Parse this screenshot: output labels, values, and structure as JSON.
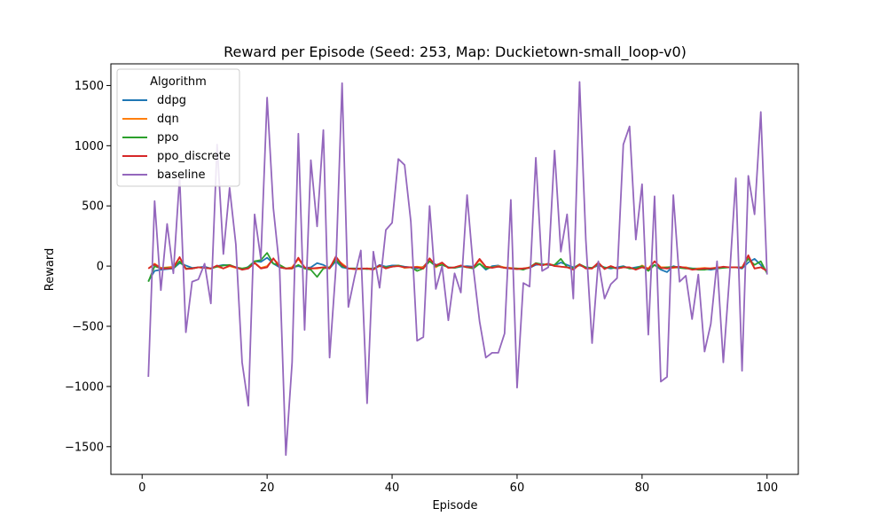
{
  "chart_data": {
    "type": "line",
    "title": "Reward per Episode (Seed: 253, Map: Duckietown-small_loop-v0)",
    "xlabel": "Episode",
    "ylabel": "Reward",
    "xlim": [
      -5,
      105
    ],
    "ylim": [
      -1730,
      1680
    ],
    "xticks": [
      0,
      20,
      40,
      60,
      80,
      100
    ],
    "yticks": [
      -1500,
      -1000,
      -500,
      0,
      500,
      1000,
      1500
    ],
    "xtick_labels": [
      "0",
      "20",
      "40",
      "60",
      "80",
      "100"
    ],
    "ytick_labels": [
      "−1500",
      "−1000",
      "−500",
      "0",
      "500",
      "1000",
      "1500"
    ],
    "grid": false,
    "legend": {
      "title": "Algorithm",
      "placement": "top-left"
    },
    "x": [
      1,
      2,
      3,
      4,
      5,
      6,
      7,
      8,
      9,
      10,
      11,
      12,
      13,
      14,
      15,
      16,
      17,
      18,
      19,
      20,
      21,
      22,
      23,
      24,
      25,
      26,
      27,
      28,
      29,
      30,
      31,
      32,
      33,
      34,
      35,
      36,
      37,
      38,
      39,
      40,
      41,
      42,
      43,
      44,
      45,
      46,
      47,
      48,
      49,
      50,
      51,
      52,
      53,
      54,
      55,
      56,
      57,
      58,
      59,
      60,
      61,
      62,
      63,
      64,
      65,
      66,
      67,
      68,
      69,
      70,
      71,
      72,
      73,
      74,
      75,
      76,
      77,
      78,
      79,
      80,
      81,
      82,
      83,
      84,
      85,
      86,
      87,
      88,
      89,
      90,
      91,
      92,
      93,
      94,
      95,
      96,
      97,
      98,
      99,
      100
    ],
    "series": [
      {
        "name": "ddpg",
        "color": "#1f77b4",
        "values": [
          -125,
          -40,
          -30,
          -25,
          -20,
          25,
          5,
          -15,
          -10,
          -5,
          -20,
          0,
          10,
          5,
          -10,
          -30,
          -5,
          40,
          35,
          70,
          20,
          -10,
          -20,
          -10,
          0,
          -15,
          -10,
          25,
          10,
          -20,
          40,
          -10,
          -20,
          -20,
          -25,
          -20,
          -25,
          10,
          -5,
          5,
          5,
          -5,
          -10,
          -20,
          -5,
          50,
          10,
          20,
          -10,
          -15,
          -5,
          0,
          -5,
          20,
          -30,
          0,
          5,
          -15,
          -20,
          -25,
          -20,
          -15,
          10,
          15,
          10,
          5,
          30,
          10,
          -10,
          5,
          -10,
          -15,
          5,
          -10,
          -20,
          -10,
          0,
          -20,
          -10,
          0,
          -20,
          10,
          -30,
          -50,
          0,
          -15,
          -10,
          -20,
          -20,
          -25,
          -30,
          -20,
          -10,
          -10,
          -10,
          -20,
          30,
          60,
          10,
          -50
        ]
      },
      {
        "name": "dqn",
        "color": "#ff7f0e",
        "values": [
          -20,
          20,
          -15,
          -10,
          -5,
          70,
          -20,
          -20,
          -10,
          -15,
          -20,
          -5,
          -20,
          0,
          -15,
          -25,
          -10,
          30,
          -15,
          0,
          60,
          10,
          -20,
          -10,
          60,
          -15,
          -20,
          -20,
          -10,
          -10,
          60,
          20,
          -20,
          -25,
          -25,
          -20,
          -20,
          0,
          -10,
          -5,
          5,
          -15,
          -10,
          -5,
          -10,
          55,
          -10,
          25,
          -15,
          -10,
          5,
          -10,
          -10,
          50,
          -5,
          -10,
          0,
          -10,
          -15,
          -20,
          -20,
          -10,
          25,
          10,
          20,
          5,
          -5,
          -10,
          -20,
          10,
          -15,
          -20,
          20,
          -20,
          0,
          -20,
          -10,
          -15,
          -25,
          5,
          -20,
          40,
          -10,
          -10,
          -15,
          -10,
          -10,
          -25,
          -20,
          -15,
          -20,
          -10,
          -10,
          -10,
          -10,
          -10,
          75,
          -20,
          -10,
          -40
        ]
      },
      {
        "name": "ppo",
        "color": "#2ca02c",
        "values": [
          -130,
          0,
          -20,
          -15,
          -20,
          40,
          -20,
          -20,
          -10,
          -15,
          -20,
          -5,
          5,
          10,
          -10,
          -20,
          -10,
          40,
          50,
          110,
          20,
          10,
          -20,
          -20,
          10,
          -20,
          -30,
          -90,
          -20,
          -10,
          50,
          0,
          -20,
          -20,
          -20,
          -25,
          -20,
          0,
          -10,
          -5,
          5,
          -10,
          -10,
          -40,
          -20,
          40,
          0,
          10,
          -10,
          -15,
          0,
          -10,
          -20,
          20,
          -20,
          -10,
          -5,
          -15,
          -20,
          -20,
          -30,
          -10,
          25,
          15,
          10,
          10,
          60,
          -10,
          -15,
          15,
          -10,
          -15,
          20,
          -15,
          -10,
          -20,
          -5,
          -20,
          -20,
          0,
          -40,
          10,
          -20,
          -10,
          -5,
          -15,
          -20,
          -20,
          -30,
          -30,
          -20,
          -20,
          -15,
          -10,
          -10,
          -10,
          60,
          10,
          40,
          -60
        ]
      },
      {
        "name": "ppo_discrete",
        "color": "#d62728",
        "values": [
          -20,
          15,
          -20,
          -20,
          -15,
          75,
          -25,
          -20,
          -10,
          -15,
          -20,
          5,
          -20,
          5,
          -10,
          -30,
          -20,
          25,
          -20,
          -10,
          65,
          -10,
          -20,
          -20,
          70,
          -10,
          -20,
          -15,
          -10,
          -20,
          80,
          10,
          -20,
          -25,
          -20,
          -20,
          -30,
          5,
          -20,
          -5,
          0,
          -10,
          -10,
          -10,
          -20,
          65,
          5,
          30,
          -15,
          -10,
          5,
          -10,
          -10,
          60,
          -5,
          -15,
          -5,
          -15,
          -20,
          -25,
          -20,
          -15,
          20,
          5,
          20,
          0,
          -5,
          -10,
          -30,
          15,
          -20,
          -20,
          30,
          -25,
          0,
          -20,
          -10,
          -10,
          -30,
          -10,
          -25,
          40,
          -15,
          -20,
          -10,
          -5,
          -15,
          -30,
          -25,
          -20,
          -20,
          -15,
          -5,
          -10,
          -10,
          -15,
          90,
          -20,
          -10,
          -40
        ]
      },
      {
        "name": "baseline",
        "color": "#9467bd",
        "values": [
          -920,
          540,
          -200,
          350,
          -60,
          740,
          -550,
          -130,
          -110,
          20,
          -310,
          1010,
          100,
          650,
          180,
          -800,
          -1160,
          430,
          60,
          1400,
          480,
          -20,
          -1570,
          -800,
          1100,
          -530,
          880,
          330,
          1130,
          -760,
          -20,
          1520,
          -340,
          -90,
          130,
          -1140,
          120,
          -180,
          300,
          360,
          890,
          840,
          370,
          -620,
          -590,
          500,
          -190,
          0,
          -450,
          -60,
          -220,
          590,
          -20,
          -460,
          -760,
          -720,
          -720,
          -560,
          550,
          -1010,
          -140,
          -170,
          900,
          -40,
          -10,
          960,
          120,
          430,
          -270,
          1530,
          220,
          -640,
          40,
          -270,
          -150,
          -100,
          1010,
          1160,
          220,
          680,
          -570,
          580,
          -960,
          -920,
          590,
          -130,
          -80,
          -440,
          -70,
          -710,
          -480,
          40,
          -800,
          -80,
          730,
          -870,
          750,
          430,
          1280,
          -70
        ]
      }
    ]
  }
}
